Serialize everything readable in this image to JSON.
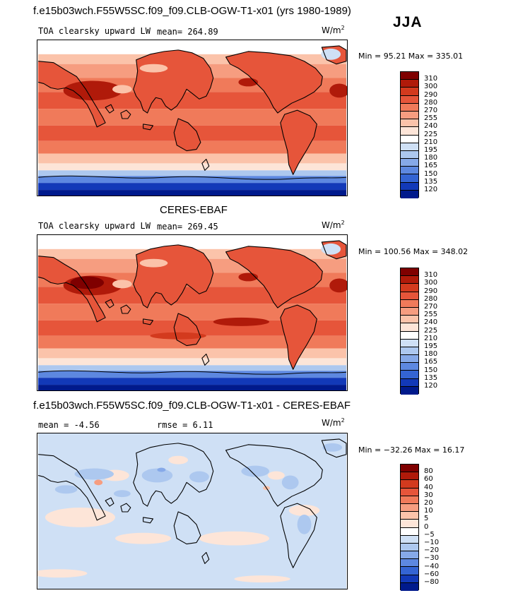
{
  "season": "JJA",
  "panels": [
    {
      "title": "f.e15b03wch.F55W5SC.f09_f09.CLB-OGW-T1-x01 (yrs 1980-1989)",
      "variable": "TOA clearsky upward LW",
      "stat_text": "mean= 264.89",
      "stat2_text": "",
      "unit_base": "W/m",
      "unit_exp": "2",
      "minmax": "Min =  95.21 Max = 335.01",
      "levels": [
        "310",
        "300",
        "290",
        "280",
        "270",
        "255",
        "240",
        "225",
        "210",
        "195",
        "180",
        "165",
        "150",
        "135",
        "120"
      ],
      "colors": [
        "#7f0000",
        "#b01a0a",
        "#d33a1e",
        "#e6553a",
        "#f07a5a",
        "#f69d80",
        "#fbc3aa",
        "#fde5d8",
        "#ffffff",
        "#cfe0f5",
        "#adc8ef",
        "#86a9e8",
        "#5d88e0",
        "#3464d3",
        "#1239b8",
        "#001a8c"
      ]
    },
    {
      "title": "CERES-EBAF",
      "variable": "TOA clearsky upward LW",
      "stat_text": "mean= 269.45",
      "stat2_text": "",
      "unit_base": "W/m",
      "unit_exp": "2",
      "minmax": "Min = 100.56 Max = 348.02",
      "levels": [
        "310",
        "300",
        "290",
        "280",
        "270",
        "255",
        "240",
        "225",
        "210",
        "195",
        "180",
        "165",
        "150",
        "135",
        "120"
      ],
      "colors": [
        "#7f0000",
        "#b01a0a",
        "#d33a1e",
        "#e6553a",
        "#f07a5a",
        "#f69d80",
        "#fbc3aa",
        "#fde5d8",
        "#ffffff",
        "#cfe0f5",
        "#adc8ef",
        "#86a9e8",
        "#5d88e0",
        "#3464d3",
        "#1239b8",
        "#001a8c"
      ]
    },
    {
      "title": "f.e15b03wch.F55W5SC.f09_f09.CLB-OGW-T1-x01 - CERES-EBAF",
      "variable": "",
      "stat_text": "mean =   -4.56",
      "stat2_text": "rmse =   6.11",
      "unit_base": "W/m",
      "unit_exp": "2",
      "minmax": "Min = −32.26 Max =  16.17",
      "levels": [
        "80",
        "60",
        "40",
        "30",
        "20",
        "10",
        "5",
        "0",
        "−5",
        "−10",
        "−20",
        "−30",
        "−40",
        "−60",
        "−80"
      ],
      "colors": [
        "#7f0000",
        "#b01a0a",
        "#d33a1e",
        "#e6553a",
        "#f07a5a",
        "#f69d80",
        "#fbc3aa",
        "#fde5d8",
        "#ffffff",
        "#cfe0f5",
        "#adc8ef",
        "#86a9e8",
        "#5d88e0",
        "#3464d3",
        "#1239b8",
        "#001a8c"
      ]
    }
  ]
}
